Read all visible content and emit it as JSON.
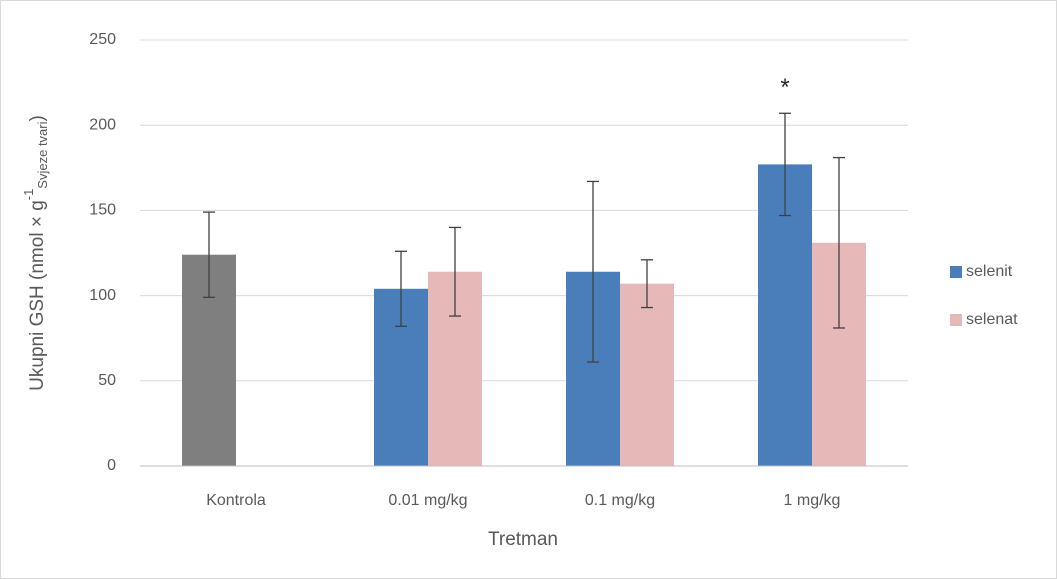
{
  "chart_data": {
    "type": "bar",
    "y_label": {
      "text": "Ukupni GSH (nmol × g",
      "sup": "-1",
      "sub": "Svjeze tvari",
      "end": ")"
    },
    "x_label": "Tretman",
    "categories": [
      "Kontrola",
      "0.01 mg/kg",
      "0.1 mg/kg",
      "1 mg/kg"
    ],
    "series": [
      {
        "name": "selenit",
        "color": "#4a7ebb",
        "point_colors": [
          "#7f7f7f",
          "#4a7ebb",
          "#4a7ebb",
          "#4a7ebb"
        ],
        "values": [
          124,
          104,
          114,
          177
        ],
        "errors": [
          25,
          22,
          53,
          30
        ]
      },
      {
        "name": "selenat",
        "color": "#e6b9b8",
        "values": [
          null,
          114,
          107,
          131
        ],
        "errors": [
          null,
          26,
          14,
          50
        ]
      }
    ],
    "annotations": [
      {
        "text": "*",
        "category": 3,
        "series": 0,
        "y": 225
      }
    ],
    "ylim": [
      0,
      250
    ],
    "yticks": [
      0,
      50,
      100,
      150,
      200,
      250
    ],
    "grid": true,
    "legend": "right"
  }
}
